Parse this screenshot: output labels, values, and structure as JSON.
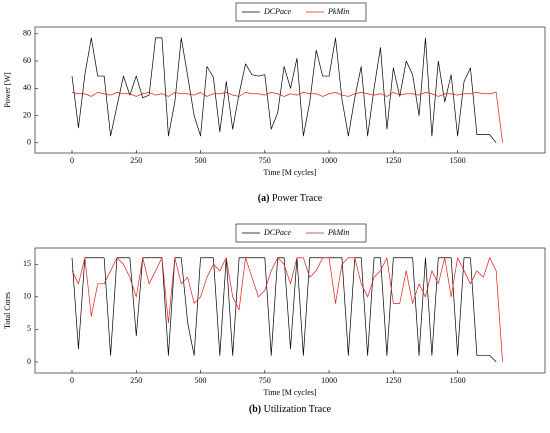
{
  "chart_data": [
    {
      "type": "line",
      "xlabel": "Time [M cycles]",
      "ylabel": "Power [W]",
      "caption_label": "(a)",
      "caption": "Power Trace",
      "x": [
        0,
        25,
        50,
        75,
        100,
        125,
        150,
        175,
        200,
        225,
        250,
        275,
        300,
        325,
        350,
        375,
        400,
        425,
        450,
        475,
        500,
        525,
        550,
        575,
        600,
        625,
        650,
        675,
        700,
        725,
        750,
        775,
        800,
        825,
        850,
        875,
        900,
        925,
        950,
        975,
        1000,
        1025,
        1050,
        1075,
        1100,
        1125,
        1150,
        1175,
        1200,
        1225,
        1250,
        1275,
        1300,
        1325,
        1350,
        1375,
        1400,
        1425,
        1450,
        1475,
        1500,
        1525,
        1550,
        1575,
        1600,
        1625,
        1650,
        1675
      ],
      "series": [
        {
          "name": "DCPace",
          "color": "#000000",
          "values": [
            49,
            11,
            50,
            77,
            49,
            49,
            5,
            27,
            49,
            35,
            49,
            33,
            35,
            77,
            77,
            5,
            30,
            77,
            49,
            20,
            5,
            56,
            48,
            8,
            45,
            10,
            36,
            58,
            50,
            49,
            50,
            10,
            22,
            56,
            40,
            62,
            5,
            30,
            68,
            49,
            49,
            77,
            32,
            5,
            33,
            56,
            5,
            40,
            70,
            10,
            55,
            34,
            60,
            50,
            20,
            77,
            5,
            60,
            30,
            50,
            5,
            45,
            55,
            6,
            6,
            6,
            0,
            null
          ]
        },
        {
          "name": "PkMin",
          "color": "#e41a1c",
          "values": [
            37,
            36,
            36,
            34,
            37,
            36,
            35,
            37,
            36,
            36,
            34,
            36,
            37,
            35,
            36,
            34,
            37,
            36,
            36,
            35,
            37,
            34,
            36,
            36,
            37,
            35,
            34,
            37,
            36,
            36,
            35,
            37,
            36,
            34,
            36,
            35,
            37,
            36,
            36,
            34,
            36,
            37,
            35,
            34,
            36,
            37,
            36,
            35,
            36,
            34,
            37,
            35,
            36,
            36,
            35,
            37,
            36,
            34,
            36,
            36,
            35,
            36,
            36,
            37,
            36,
            36,
            37,
            0
          ]
        }
      ],
      "xlim": [
        -144,
        1840
      ],
      "xticks": [
        0,
        250,
        500,
        750,
        1000,
        1250,
        1500
      ],
      "ylim": [
        -7.5,
        85
      ],
      "yticks": [
        0,
        20,
        40,
        60,
        80
      ]
    },
    {
      "type": "line",
      "xlabel": "Time [M cycles]",
      "ylabel": "Total Cores",
      "caption_label": "(b)",
      "caption": "Utilization Trace",
      "x": [
        0,
        25,
        50,
        75,
        100,
        125,
        150,
        175,
        200,
        225,
        250,
        275,
        300,
        325,
        350,
        375,
        400,
        425,
        450,
        475,
        500,
        525,
        550,
        575,
        600,
        625,
        650,
        675,
        700,
        725,
        750,
        775,
        800,
        825,
        850,
        875,
        900,
        925,
        950,
        975,
        1000,
        1025,
        1050,
        1075,
        1100,
        1125,
        1150,
        1175,
        1200,
        1225,
        1250,
        1275,
        1300,
        1325,
        1350,
        1375,
        1400,
        1425,
        1450,
        1475,
        1500,
        1525,
        1550,
        1575,
        1600,
        1625,
        1650,
        1675
      ],
      "series": [
        {
          "name": "DCPace",
          "color": "#000000",
          "values": [
            16,
            2,
            16,
            16,
            16,
            16,
            1,
            16,
            16,
            16,
            4,
            16,
            16,
            16,
            16,
            1,
            16,
            16,
            6,
            1,
            16,
            16,
            16,
            1,
            16,
            1,
            16,
            16,
            16,
            16,
            16,
            1,
            16,
            16,
            2,
            16,
            1,
            16,
            16,
            16,
            16,
            16,
            16,
            1,
            16,
            16,
            1,
            16,
            16,
            1,
            16,
            16,
            16,
            16,
            1,
            16,
            1,
            16,
            16,
            16,
            1,
            16,
            16,
            1,
            1,
            1,
            0,
            null
          ]
        },
        {
          "name": "PkMin",
          "color": "#e41a1c",
          "values": [
            14,
            12,
            16,
            7,
            12,
            12,
            14,
            16,
            15,
            13,
            10,
            16,
            12,
            14,
            16,
            6,
            16,
            12,
            13,
            9,
            10,
            13,
            15,
            14,
            16,
            10,
            8,
            16,
            13,
            10,
            11,
            14,
            16,
            15,
            12,
            16,
            16,
            13,
            14,
            16,
            16,
            9,
            15,
            16,
            16,
            12,
            10,
            13,
            14,
            16,
            9,
            9,
            14,
            9,
            12,
            10,
            14,
            12,
            16,
            10,
            16,
            14,
            12,
            14,
            13,
            16,
            14,
            0
          ]
        }
      ],
      "xlim": [
        -144,
        1840
      ],
      "xticks": [
        0,
        250,
        500,
        750,
        1000,
        1250,
        1500
      ],
      "ylim": [
        -1.7,
        17.5
      ],
      "yticks": [
        0,
        5,
        10,
        15
      ]
    }
  ]
}
